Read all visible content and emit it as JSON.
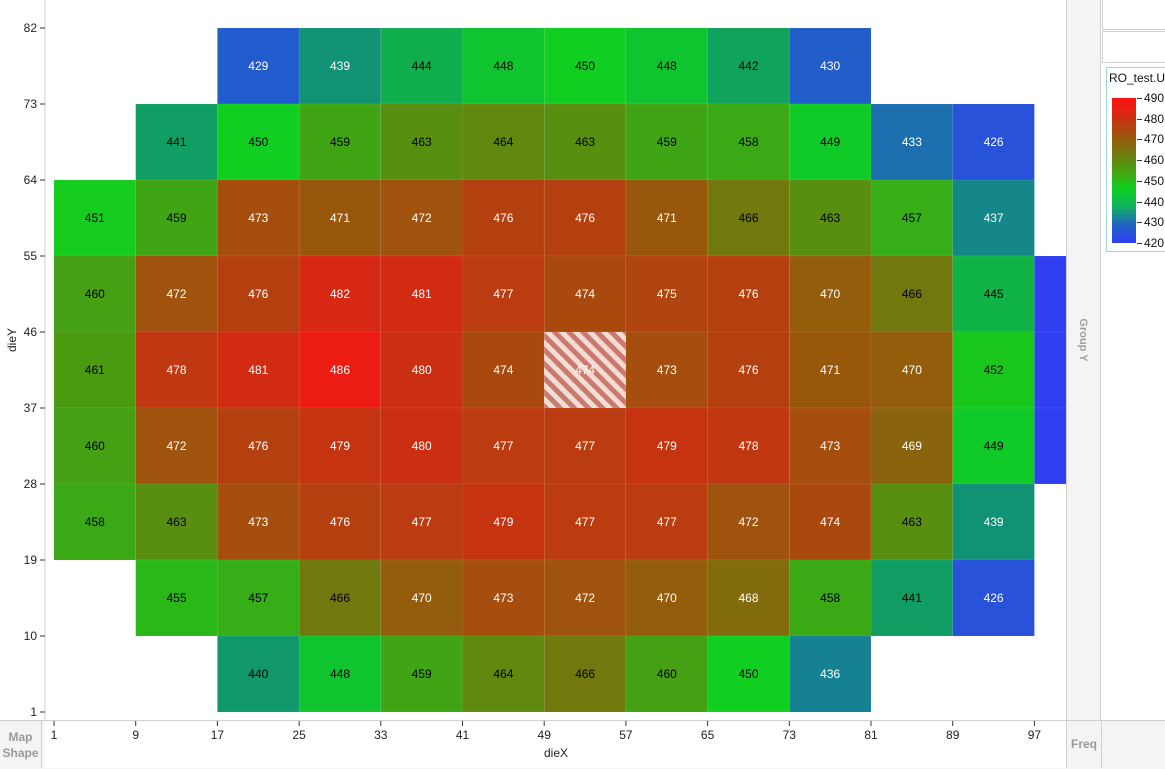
{
  "chart_data": {
    "type": "heatmap",
    "xlabel": "dieX",
    "ylabel": "dieY",
    "x_ticks": [
      1,
      9,
      17,
      25,
      33,
      41,
      49,
      57,
      65,
      73,
      81,
      89,
      97
    ],
    "y_ticks": [
      1,
      10,
      19,
      28,
      37,
      46,
      55,
      64,
      73,
      82
    ],
    "xlim": [
      1,
      102
    ],
    "ylim": [
      1,
      82
    ],
    "color_scale": {
      "min": 420,
      "max": 490,
      "low_color": "#3040f0",
      "mid_color": "#10d020",
      "high_color": "#ff1010"
    },
    "highlighted_cell": {
      "col": 7,
      "row": 4
    },
    "rows": [
      {
        "y": [
          73,
          82
        ],
        "start": 3,
        "values": [
          429,
          439,
          444,
          448,
          450,
          448,
          442,
          430
        ]
      },
      {
        "y": [
          64,
          73
        ],
        "start": 2,
        "values": [
          441,
          450,
          459,
          463,
          464,
          463,
          459,
          458,
          449,
          433,
          426
        ]
      },
      {
        "y": [
          55,
          64
        ],
        "start": 1,
        "values": [
          451,
          459,
          473,
          471,
          472,
          476,
          476,
          471,
          466,
          463,
          457,
          437
        ]
      },
      {
        "y": [
          46,
          55
        ],
        "start": 1,
        "values": [
          460,
          472,
          476,
          482,
          481,
          477,
          474,
          475,
          476,
          470,
          466,
          445,
          null
        ]
      },
      {
        "y": [
          37,
          46
        ],
        "start": 1,
        "values": [
          461,
          478,
          481,
          486,
          480,
          474,
          474,
          473,
          476,
          471,
          470,
          452,
          null
        ]
      },
      {
        "y": [
          28,
          37
        ],
        "start": 1,
        "values": [
          460,
          472,
          476,
          479,
          480,
          477,
          477,
          479,
          478,
          473,
          469,
          449,
          null
        ]
      },
      {
        "y": [
          19,
          28
        ],
        "start": 1,
        "values": [
          458,
          463,
          473,
          476,
          477,
          479,
          477,
          477,
          472,
          474,
          463,
          439
        ]
      },
      {
        "y": [
          10,
          19
        ],
        "start": 2,
        "values": [
          455,
          457,
          466,
          470,
          473,
          472,
          470,
          468,
          458,
          441,
          426
        ]
      },
      {
        "y": [
          1,
          10
        ],
        "start": 3,
        "values": [
          440,
          448,
          459,
          464,
          466,
          460,
          450,
          436
        ]
      }
    ],
    "legend": {
      "title": "RO_test.UT",
      "labels": [
        "490",
        "480",
        "470",
        "460",
        "450",
        "440",
        "430",
        "420"
      ]
    }
  },
  "ui": {
    "map_shape_label": "Map\nShape",
    "group_y_label": "Group Y",
    "freq_label": "Freq"
  }
}
